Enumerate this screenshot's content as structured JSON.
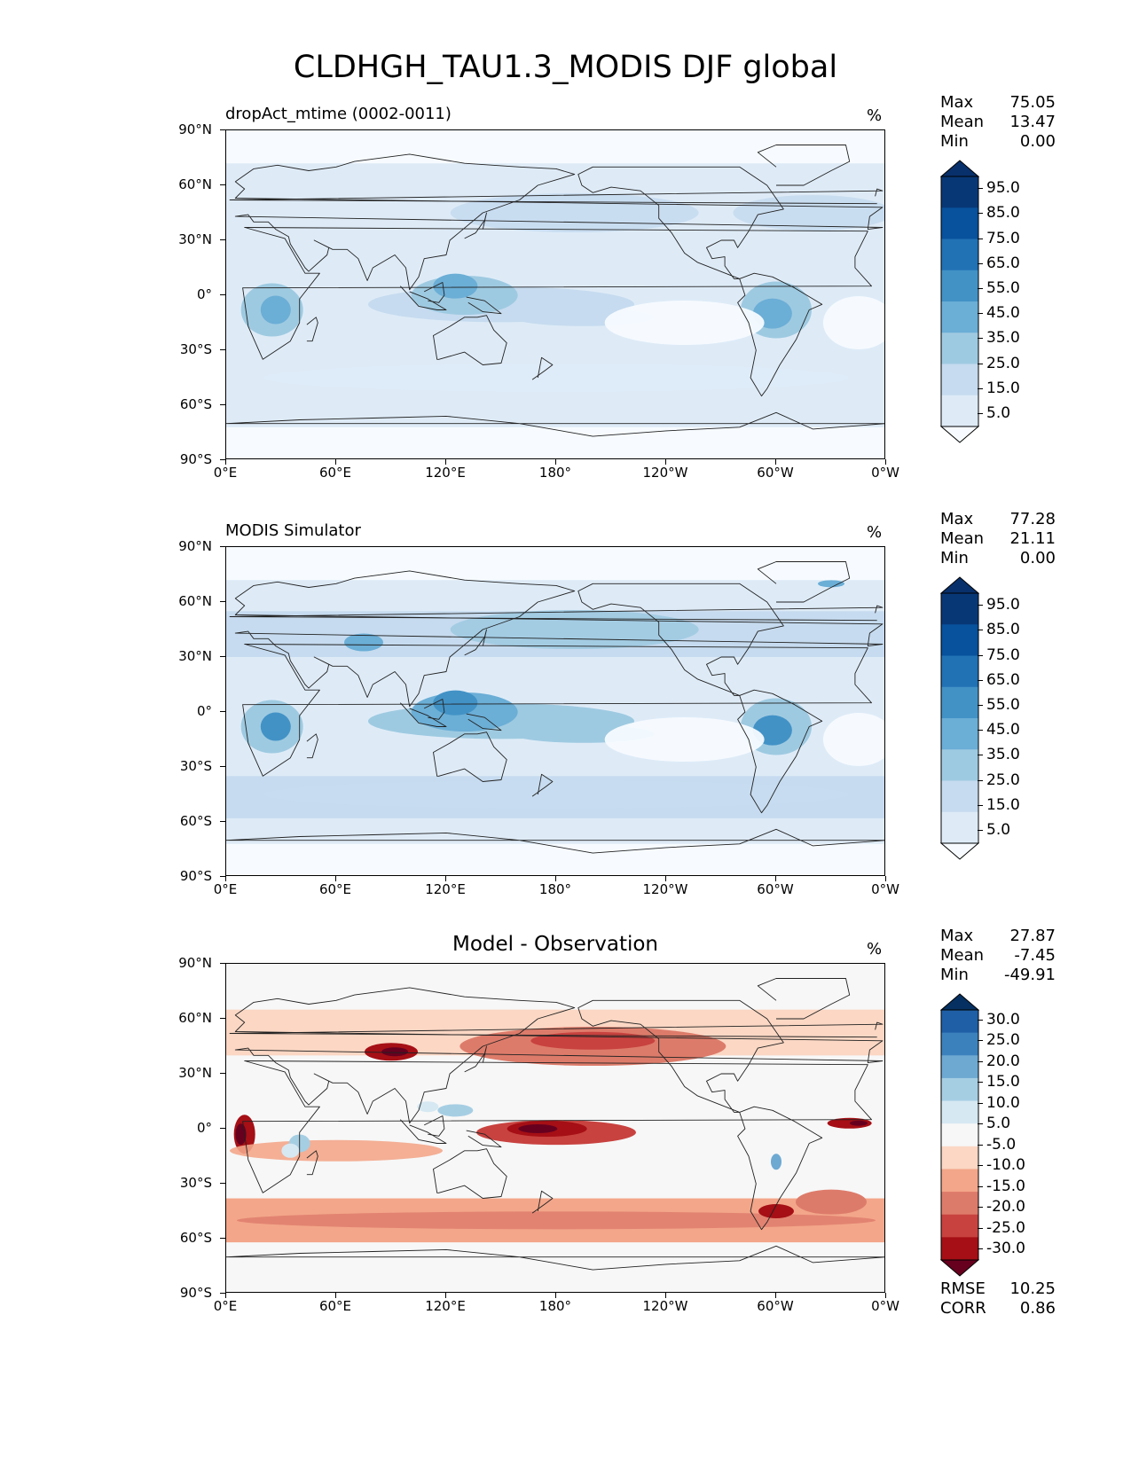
{
  "figure_title": "CLDHGH_TAU1.3_MODIS DJF global",
  "lat_labels": [
    "90°N",
    "60°N",
    "30°N",
    "0°",
    "30°S",
    "60°S",
    "90°S"
  ],
  "lon_labels": [
    "0°E",
    "60°E",
    "120°E",
    "180°",
    "120°W",
    "60°W",
    "0°W"
  ],
  "colors": {
    "seq_levels": [
      "#f7fbff",
      "#deebf7",
      "#c6dbef",
      "#9ecae1",
      "#6baed6",
      "#4292c6",
      "#2171b5",
      "#08519c",
      "#083776",
      "#08306b"
    ],
    "div_levels": [
      "#67001f",
      "#a50f15",
      "#c8423f",
      "#dd7b6a",
      "#f3a68a",
      "#fbd7c4",
      "#f7f7f7",
      "#d6e8f2",
      "#a6cee3",
      "#6ea9d2",
      "#3b82bd",
      "#1f5fa5",
      "#053061"
    ]
  },
  "panels": [
    {
      "id": "model",
      "title": "dropAct_mtime (0002-0011)",
      "units": "%",
      "stats": [
        {
          "label": "Max",
          "value": "75.05"
        },
        {
          "label": "Mean",
          "value": "13.47"
        },
        {
          "label": "Min",
          "value": "0.00"
        }
      ],
      "colorbar_type": "sequential",
      "colorbar_labels": [
        "95.0",
        "85.0",
        "75.0",
        "65.0",
        "55.0",
        "45.0",
        "35.0",
        "25.0",
        "15.0",
        "5.0"
      ]
    },
    {
      "id": "obs",
      "title": "MODIS Simulator",
      "units": "%",
      "stats": [
        {
          "label": "Max",
          "value": "77.28"
        },
        {
          "label": "Mean",
          "value": "21.11"
        },
        {
          "label": "Min",
          "value": "0.00"
        }
      ],
      "colorbar_type": "sequential",
      "colorbar_labels": [
        "95.0",
        "85.0",
        "75.0",
        "65.0",
        "55.0",
        "45.0",
        "35.0",
        "25.0",
        "15.0",
        "5.0"
      ]
    },
    {
      "id": "diff",
      "title": "Model - Observation",
      "units": "%",
      "stats": [
        {
          "label": "Max",
          "value": "27.87"
        },
        {
          "label": "Mean",
          "value": "-7.45"
        },
        {
          "label": "Min",
          "value": "-49.91"
        }
      ],
      "colorbar_type": "diverging",
      "colorbar_labels": [
        "30.0",
        "25.0",
        "20.0",
        "15.0",
        "10.0",
        "5.0",
        "-5.0",
        "-10.0",
        "-15.0",
        "-20.0",
        "-25.0",
        "-30.0"
      ],
      "extra_stats": [
        {
          "label": "RMSE",
          "value": "10.25"
        },
        {
          "label": "CORR",
          "value": "0.86"
        }
      ]
    }
  ]
}
